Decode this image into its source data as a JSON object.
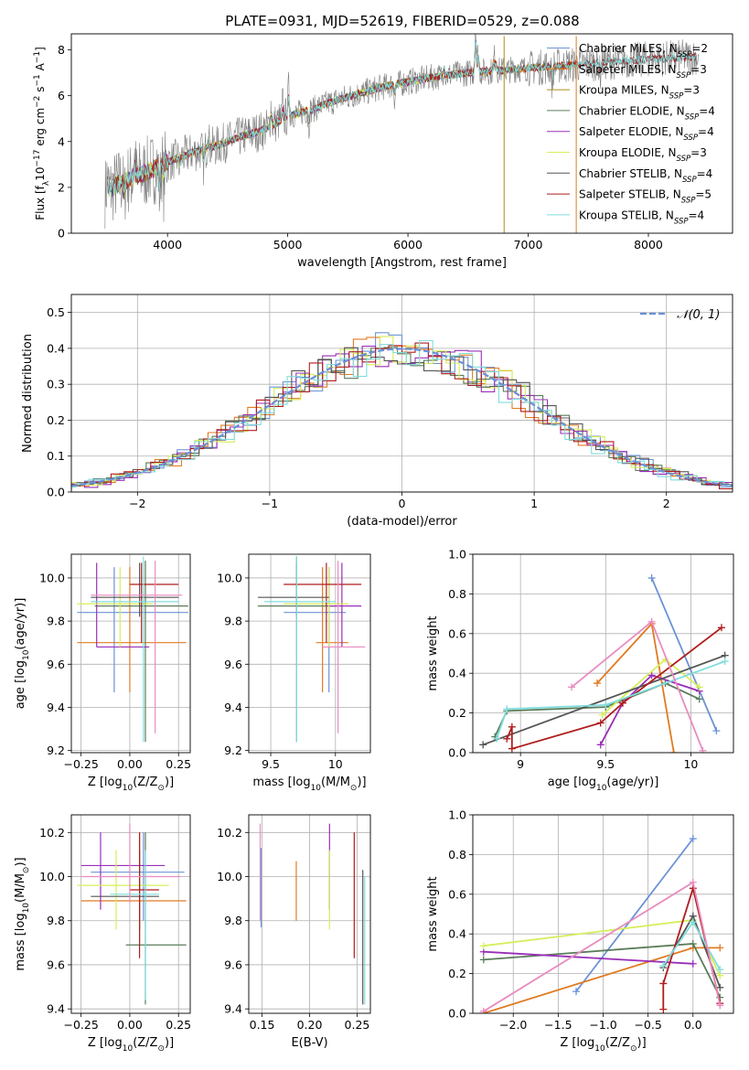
{
  "title": "PLATE=0931, MJD=52619, FIBERID=0529, z=0.088",
  "colors": {
    "Chabrier MILES": "#6b93d6",
    "Salpeter MILES": "#e07b22",
    "Kroupa MILES": "#ac8d18",
    "Chabrier ELODIE": "#5a7d5a",
    "Salpeter ELODIE": "#9a2fb8",
    "Kroupa ELODIE": "#d6ee5a",
    "Chabrier STELIB": "#555555",
    "Salpeter STELIB": "#b01c1c",
    "Kroupa STELIB": "#80dddd",
    "pink": "#e88cc0",
    "data": "#808080",
    "normal": "#6a8fd6"
  },
  "chart_data": [
    {
      "id": "spectrum",
      "type": "line",
      "xlabel": "wavelength [Angstrom, rest frame]",
      "ylabel_parts": [
        "Flux [f",
        "λ",
        "10",
        "−17",
        " erg cm",
        "−2",
        " s",
        "−1",
        " A",
        "−1",
        "]"
      ],
      "xlim": [
        3200,
        8700
      ],
      "ylim": [
        0,
        8.7
      ],
      "xticks": [
        4000,
        5000,
        6000,
        7000,
        8000
      ],
      "yticks": [
        0,
        2,
        4,
        6,
        8
      ],
      "model_knots": [
        [
          3500,
          1.8
        ],
        [
          3600,
          2.2
        ],
        [
          3800,
          2.6
        ],
        [
          4000,
          3.1
        ],
        [
          4200,
          3.5
        ],
        [
          4400,
          3.8
        ],
        [
          4600,
          4.2
        ],
        [
          4800,
          4.5
        ],
        [
          5000,
          5.1
        ],
        [
          5200,
          5.4
        ],
        [
          5400,
          5.8
        ],
        [
          5600,
          6.1
        ],
        [
          5800,
          6.4
        ],
        [
          6000,
          6.6
        ],
        [
          6200,
          6.8
        ],
        [
          6500,
          7.0
        ],
        [
          7000,
          7.2
        ],
        [
          7500,
          7.4
        ],
        [
          8000,
          7.6
        ],
        [
          8400,
          7.7
        ]
      ],
      "legend": [
        {
          "label": "Chabrier MILES, N",
          "n": "2"
        },
        {
          "label": "Salpeter MILES, N",
          "n": "3"
        },
        {
          "label": "Kroupa MILES, N",
          "n": "3"
        },
        {
          "label": "Chabrier ELODIE, N",
          "n": "4"
        },
        {
          "label": "Salpeter ELODIE, N",
          "n": "4"
        },
        {
          "label": "Kroupa ELODIE, N",
          "n": "3"
        },
        {
          "label": "Chabrier STELIB, N",
          "n": "4"
        },
        {
          "label": "Salpeter STELIB, N",
          "n": "5"
        },
        {
          "label": "Kroupa STELIB, N",
          "n": "4"
        }
      ],
      "legend_sub": "SSP",
      "grid": false,
      "legend_position": "right"
    },
    {
      "id": "residuals",
      "type": "histogram",
      "xlabel": "(data-model)/error",
      "ylabel": "Normed distribution",
      "xlim": [
        -2.5,
        2.5
      ],
      "ylim": [
        0,
        0.55
      ],
      "xticks": [
        -2,
        -1,
        0,
        1,
        2
      ],
      "yticks": [
        0.0,
        0.1,
        0.2,
        0.3,
        0.4,
        0.5
      ],
      "bin_width": 0.1,
      "legend": "𝒩(0, 1)",
      "grid": true,
      "legend_position": "top-right"
    },
    {
      "id": "age-vs-Z",
      "type": "errorbar",
      "xlabel_parts": [
        "Z [log",
        "10",
        "(Z/Z",
        "⊙",
        ")]"
      ],
      "ylabel_parts": [
        "age  [log",
        "10",
        "(age/yr)]"
      ],
      "xlim": [
        -0.3,
        0.31
      ],
      "ylim": [
        9.19,
        10.11
      ],
      "xticks": [
        -0.25,
        0.0,
        0.25
      ],
      "xticklabels": [
        "−0.25",
        "0.00",
        "0.25"
      ],
      "yticks": [
        9.2,
        9.4,
        9.6,
        9.8,
        10.0
      ],
      "points": [
        {
          "c": "Chabrier MILES",
          "x": -0.08,
          "y": 9.84,
          "xe": [
            -0.27,
            0.3
          ],
          "ye": [
            9.47,
            10.05
          ]
        },
        {
          "c": "Salpeter MILES",
          "x": 0.0,
          "y": 9.7,
          "xe": [
            -0.27,
            0.29
          ],
          "ye": [
            9.47,
            10.05
          ]
        },
        {
          "c": "Chabrier ELODIE",
          "x": 0.08,
          "y": 9.87,
          "xe": [
            -0.18,
            0.3
          ],
          "ye": [
            9.24,
            10.08
          ]
        },
        {
          "c": "Salpeter ELODIE",
          "x": -0.17,
          "y": 9.68,
          "xe": [
            -0.17,
            0.1
          ],
          "ye": [
            9.68,
            10.07
          ]
        },
        {
          "c": "Kroupa ELODIE",
          "x": -0.05,
          "y": 9.88,
          "xe": [
            -0.27,
            0.12
          ],
          "ye": [
            9.68,
            10.05
          ]
        },
        {
          "c": "Chabrier STELIB",
          "x": 0.05,
          "y": 9.91,
          "xe": [
            -0.2,
            0.25
          ],
          "ye": [
            9.82,
            10.07
          ]
        },
        {
          "c": "Salpeter STELIB",
          "x": 0.06,
          "y": 9.97,
          "xe": [
            0.0,
            0.25
          ],
          "ye": [
            9.7,
            10.07
          ]
        },
        {
          "c": "Kroupa STELIB",
          "x": 0.07,
          "y": 9.89,
          "xe": [
            -0.2,
            0.25
          ],
          "ye": [
            9.24,
            10.1
          ]
        },
        {
          "c": "pink",
          "x": 0.13,
          "y": 9.92,
          "xe": [
            -0.2,
            0.27
          ],
          "ye": [
            9.28,
            10.08
          ]
        }
      ],
      "grid": true
    },
    {
      "id": "age-vs-mass",
      "type": "errorbar",
      "xlabel_parts": [
        "mass [log",
        "10",
        "(M/M",
        "⊙",
        ")]"
      ],
      "xlim": [
        9.33,
        10.27
      ],
      "ylim": [
        9.19,
        10.11
      ],
      "xticks": [
        9.5,
        10.0
      ],
      "yticks": [
        9.2,
        9.4,
        9.6,
        9.8,
        10.0
      ],
      "points": [
        {
          "c": "Chabrier MILES",
          "x": 9.95,
          "y": 9.84,
          "xe": [
            9.6,
            10.08
          ],
          "ye": [
            9.47,
            10.05
          ]
        },
        {
          "c": "Salpeter MILES",
          "x": 9.9,
          "y": 9.7,
          "xe": [
            9.85,
            10.1
          ],
          "ye": [
            9.47,
            10.05
          ]
        },
        {
          "c": "Chabrier ELODIE",
          "x": 9.7,
          "y": 9.87,
          "xe": [
            9.4,
            10.0
          ],
          "ye": [
            9.24,
            10.1
          ]
        },
        {
          "c": "Salpeter ELODIE",
          "x": 10.05,
          "y": 9.87,
          "xe": [
            9.95,
            10.2
          ],
          "ye": [
            9.68,
            10.07
          ]
        },
        {
          "c": "Kroupa ELODIE",
          "x": 9.95,
          "y": 9.88,
          "xe": [
            9.6,
            10.1
          ],
          "ye": [
            9.68,
            10.05
          ]
        },
        {
          "c": "Chabrier STELIB",
          "x": 9.7,
          "y": 9.91,
          "xe": [
            9.4,
            9.95
          ],
          "ye": [
            9.82,
            10.07
          ]
        },
        {
          "c": "Salpeter STELIB",
          "x": 9.93,
          "y": 9.97,
          "xe": [
            9.6,
            10.2
          ],
          "ye": [
            9.7,
            10.07
          ]
        },
        {
          "c": "Kroupa STELIB",
          "x": 9.7,
          "y": 9.89,
          "xe": [
            9.45,
            10.0
          ],
          "ye": [
            9.24,
            10.1
          ]
        },
        {
          "c": "pink",
          "x": 10.02,
          "y": 9.68,
          "xe": [
            9.9,
            10.23
          ],
          "ye": [
            9.28,
            10.08
          ]
        }
      ],
      "grid": true
    },
    {
      "id": "mass-weight-vs-age",
      "type": "line",
      "xlabel_parts": [
        "age  [log",
        "10",
        "(age/yr)]"
      ],
      "ylabel": "mass weight",
      "xlim": [
        8.72,
        10.25
      ],
      "ylim": [
        0,
        1.0
      ],
      "xticks": [
        9.0,
        9.5,
        10.0
      ],
      "yticks": [
        0.0,
        0.2,
        0.4,
        0.6,
        0.8,
        1.0
      ],
      "series": [
        {
          "c": "Chabrier MILES",
          "pts": [
            [
              9.77,
              0.88
            ],
            [
              10.15,
              0.11
            ]
          ]
        },
        {
          "c": "Salpeter MILES",
          "pts": [
            [
              9.45,
              0.35
            ],
            [
              9.77,
              0.65
            ],
            [
              9.9,
              0.0
            ]
          ]
        },
        {
          "c": "Chabrier ELODIE",
          "pts": [
            [
              8.85,
              0.08
            ],
            [
              8.92,
              0.21
            ],
            [
              9.5,
              0.23
            ],
            [
              9.85,
              0.35
            ],
            [
              10.05,
              0.27
            ]
          ]
        },
        {
          "c": "Salpeter ELODIE",
          "pts": [
            [
              9.47,
              0.04
            ],
            [
              9.6,
              0.25
            ],
            [
              9.77,
              0.39
            ],
            [
              10.05,
              0.31
            ]
          ]
        },
        {
          "c": "Kroupa ELODIE",
          "pts": [
            [
              9.48,
              0.19
            ],
            [
              9.85,
              0.47
            ],
            [
              10.05,
              0.33
            ]
          ]
        },
        {
          "c": "Chabrier STELIB",
          "pts": [
            [
              8.78,
              0.04
            ],
            [
              10.2,
              0.49
            ]
          ]
        },
        {
          "c": "Salpeter STELIB",
          "pts": [
            [
              8.92,
              0.07
            ],
            [
              8.95,
              0.13
            ],
            [
              8.95,
              0.02
            ],
            [
              9.47,
              0.15
            ],
            [
              9.6,
              0.25
            ],
            [
              10.18,
              0.63
            ]
          ]
        },
        {
          "c": "Kroupa STELIB",
          "pts": [
            [
              8.86,
              0.07
            ],
            [
              8.92,
              0.22
            ],
            [
              9.5,
              0.24
            ],
            [
              10.2,
              0.46
            ]
          ]
        },
        {
          "c": "pink",
          "pts": [
            [
              9.3,
              0.33
            ],
            [
              9.77,
              0.66
            ],
            [
              10.07,
              0.01
            ]
          ]
        }
      ],
      "grid": true
    },
    {
      "id": "mass-vs-Z",
      "type": "errorbar",
      "xlabel_parts": [
        "Z [log",
        "10",
        "(Z/Z",
        "⊙",
        ")]"
      ],
      "ylabel_parts": [
        "mass [log",
        "10",
        "(M/M",
        "⊙",
        ")]"
      ],
      "xlim": [
        -0.3,
        0.31
      ],
      "ylim": [
        9.38,
        10.28
      ],
      "xticks": [
        -0.25,
        0.0,
        0.25
      ],
      "xticklabels": [
        "−0.25",
        "0.00",
        "0.25"
      ],
      "yticks": [
        9.4,
        9.6,
        9.8,
        10.0,
        10.2
      ],
      "points": [
        {
          "c": "Chabrier MILES",
          "x": 0.07,
          "y": 10.02,
          "xe": [
            -0.2,
            0.28
          ],
          "ye": [
            9.8,
            10.2
          ]
        },
        {
          "c": "Salpeter MILES",
          "x": 0.05,
          "y": 9.89,
          "xe": [
            -0.25,
            0.29
          ],
          "ye": [
            9.7,
            10.2
          ]
        },
        {
          "c": "Chabrier ELODIE",
          "x": 0.08,
          "y": 9.69,
          "xe": [
            -0.02,
            0.29
          ],
          "ye": [
            9.42,
            10.2
          ]
        },
        {
          "c": "Salpeter ELODIE",
          "x": -0.15,
          "y": 10.05,
          "xe": [
            -0.25,
            0.18
          ],
          "ye": [
            9.85,
            10.2
          ]
        },
        {
          "c": "Kroupa ELODIE",
          "x": -0.07,
          "y": 9.96,
          "xe": [
            -0.27,
            0.2
          ],
          "ye": [
            9.76,
            10.12
          ]
        },
        {
          "c": "Chabrier STELIB",
          "x": 0.05,
          "y": 9.91,
          "xe": [
            -0.2,
            0.15
          ],
          "ye": [
            9.76,
            10.12
          ]
        },
        {
          "c": "Salpeter STELIB",
          "x": 0.05,
          "y": 9.94,
          "xe": [
            0.0,
            0.15
          ],
          "ye": [
            9.63,
            10.2
          ]
        },
        {
          "c": "Kroupa STELIB",
          "x": 0.08,
          "y": 9.92,
          "xe": [
            -0.1,
            0.15
          ],
          "ye": [
            9.44,
            10.12
          ]
        },
        {
          "c": "pink",
          "x": 0.0,
          "y": 10.0,
          "xe": [
            -0.25,
            0.26
          ],
          "ye": [
            9.88,
            10.24
          ]
        }
      ],
      "grid": true
    },
    {
      "id": "mass-vs-EBV",
      "type": "errorbar",
      "xlabel": "E(B-V)",
      "xlim": [
        0.136,
        0.264
      ],
      "ylim": [
        9.38,
        10.28
      ],
      "xticks": [
        0.15,
        0.2,
        0.25
      ],
      "xticklabels": [
        "0.15",
        "0.20",
        "0.25"
      ],
      "yticks": [
        9.4,
        9.6,
        9.8,
        10.0,
        10.2
      ],
      "points": [
        {
          "c": "Chabrier MILES",
          "x": 0.149,
          "y": 10.0,
          "ye": [
            9.77,
            10.13
          ]
        },
        {
          "c": "pink",
          "x": 0.148,
          "y": 10.0,
          "ye": [
            9.8,
            10.24
          ]
        },
        {
          "c": "Salpeter MILES",
          "x": 0.186,
          "y": 9.95,
          "ye": [
            9.8,
            10.07
          ]
        },
        {
          "c": "Salpeter ELODIE",
          "x": 0.221,
          "y": 10.0,
          "ye": [
            9.85,
            10.24
          ]
        },
        {
          "c": "Kroupa ELODIE",
          "x": 0.221,
          "y": 9.95,
          "ye": [
            9.76,
            10.12
          ]
        },
        {
          "c": "Salpeter STELIB",
          "x": 0.247,
          "y": 9.9,
          "ye": [
            9.63,
            10.2
          ]
        },
        {
          "c": "Chabrier STELIB",
          "x": 0.256,
          "y": 9.9,
          "ye": [
            9.42,
            10.03
          ]
        },
        {
          "c": "Kroupa STELIB",
          "x": 0.258,
          "y": 9.9,
          "ye": [
            9.42,
            10.0
          ]
        }
      ],
      "grid": true
    },
    {
      "id": "mass-weight-vs-Z",
      "type": "line",
      "xlabel_parts": [
        "Z [log",
        "10",
        "(Z/Z",
        "⊙",
        ")]"
      ],
      "ylabel": "mass weight",
      "xlim": [
        -2.45,
        0.45
      ],
      "ylim": [
        0,
        1.0
      ],
      "xticks": [
        -2.0,
        -1.5,
        -1.0,
        -0.5,
        0.0
      ],
      "xticklabels": [
        "−2.0",
        "−1.5",
        "−1.0",
        "−0.5",
        "0.0"
      ],
      "yticks": [
        0.0,
        0.2,
        0.4,
        0.6,
        0.8,
        1.0
      ],
      "series": [
        {
          "c": "Chabrier MILES",
          "pts": [
            [
              -1.3,
              0.11
            ],
            [
              0.0,
              0.88
            ]
          ]
        },
        {
          "c": "Salpeter MILES",
          "pts": [
            [
              -2.33,
              0.0
            ],
            [
              0.0,
              0.33
            ],
            [
              0.3,
              0.33
            ]
          ]
        },
        {
          "c": "Chabrier ELODIE",
          "pts": [
            [
              -2.33,
              0.27
            ],
            [
              0.0,
              0.35
            ],
            [
              0.3,
              0.08
            ]
          ]
        },
        {
          "c": "Salpeter ELODIE",
          "pts": [
            [
              -2.33,
              0.31
            ],
            [
              0.0,
              0.25
            ]
          ]
        },
        {
          "c": "Kroupa ELODIE",
          "pts": [
            [
              -2.33,
              0.34
            ],
            [
              0.0,
              0.47
            ],
            [
              0.3,
              0.19
            ]
          ]
        },
        {
          "c": "Chabrier STELIB",
          "pts": [
            [
              -0.33,
              0.23
            ],
            [
              0.0,
              0.49
            ],
            [
              0.3,
              0.13
            ]
          ]
        },
        {
          "c": "Salpeter STELIB",
          "pts": [
            [
              -0.33,
              0.02
            ],
            [
              -0.33,
              0.15
            ],
            [
              0.0,
              0.63
            ],
            [
              0.3,
              0.05
            ]
          ]
        },
        {
          "c": "Kroupa STELIB",
          "pts": [
            [
              -0.33,
              0.24
            ],
            [
              0.0,
              0.46
            ],
            [
              0.3,
              0.22
            ]
          ]
        },
        {
          "c": "pink",
          "pts": [
            [
              -2.33,
              0.01
            ],
            [
              0.0,
              0.66
            ],
            [
              0.3,
              0.04
            ]
          ]
        }
      ],
      "grid": true
    }
  ]
}
